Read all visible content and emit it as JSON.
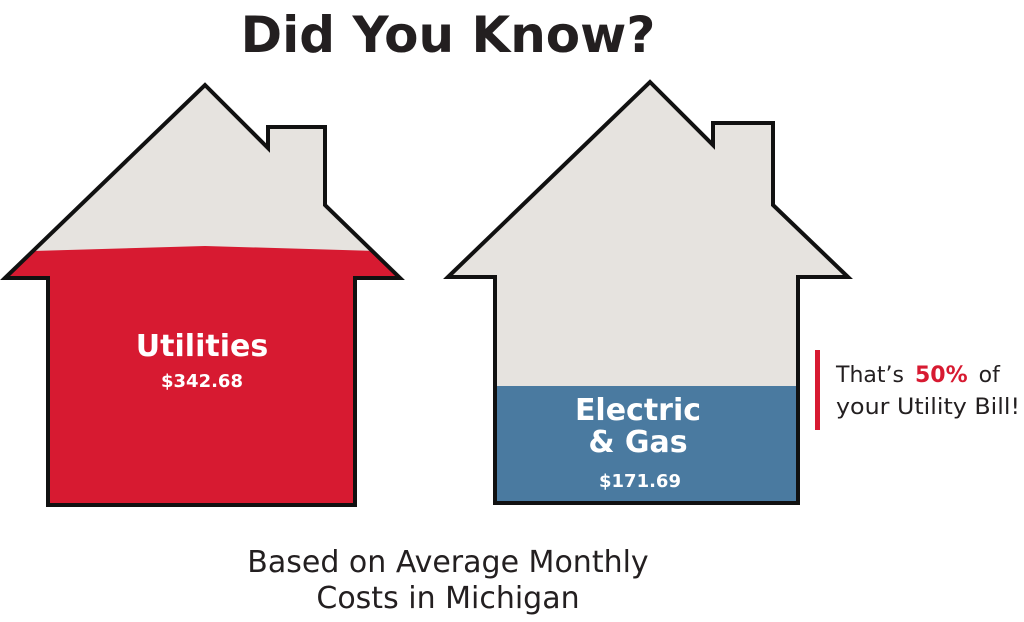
{
  "title": "Did You Know?",
  "houses": [
    {
      "label_lines": [
        "Utilities"
      ],
      "amount": "$342.68"
    },
    {
      "label_lines": [
        "Electric",
        "& Gas"
      ],
      "amount": "$171.69"
    }
  ],
  "callout": {
    "before": "That’s",
    "highlight": "50%",
    "after": "of",
    "line2": "your Utility Bill!"
  },
  "footnote": [
    "Based on Average Monthly",
    "Costs in Michigan"
  ]
}
